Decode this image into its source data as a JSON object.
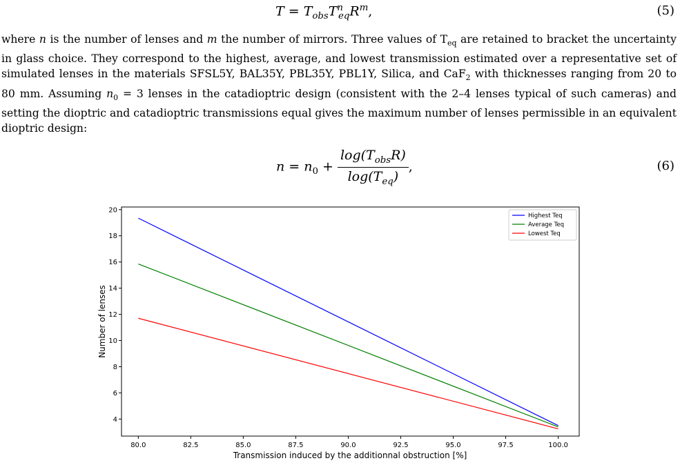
{
  "equation_5": {
    "lhs": "T",
    "rhs": "T",
    "rhs_sub1": "obs",
    "rhs_t2": "T",
    "rhs_sup2": "n",
    "rhs_sub2": "eq",
    "rhs_r": "R",
    "rhs_sup3": "m",
    "tail": ",",
    "number": "(5)"
  },
  "paragraph": {
    "t1": "where ",
    "var_n": "n",
    "t2": " is the number of lenses and ",
    "var_m": "m",
    "t3": " the number of mirrors. Three values of T",
    "sub_eq": "eq",
    "t4": " are retained to bracket the uncertainty in glass choice. They correspond to the highest, average, and lowest transmission estimated over a representative set of simulated lenses in the materials SFSL5Y, BAL35Y, PBL35Y, PBL1Y, Silica, and CaF",
    "sub_2": "2",
    "t5": " with thicknesses ranging from 20 to 80 mm. Assuming ",
    "var_n0": "n",
    "sub_0": "0",
    "t6": " = 3 lenses in the catadioptric design (consistent with the 2–4 lenses typical of such cameras) and setting the dioptric and catadioptric transmissions equal gives the maximum number of lenses permissible in an equivalent dioptric design:"
  },
  "equation_6": {
    "lhs": "n = n",
    "lhs_sub": "0",
    "plus": " + ",
    "num_a": "log(T",
    "num_sub": "obs",
    "num_b": "R)",
    "den_a": "log(T",
    "den_sub": "eq",
    "den_b": ")",
    "tail": ",",
    "number": "(6)"
  },
  "chart_data": {
    "type": "line",
    "xlabel": "Transmission induced by the additionnal obstruction [%]",
    "ylabel": "Number of lenses",
    "xlim": [
      79.2,
      101.0
    ],
    "ylim": [
      2.7,
      20.2
    ],
    "xticks": [
      "80.0",
      "82.5",
      "85.0",
      "87.5",
      "90.0",
      "92.5",
      "95.0",
      "97.5",
      "100.0"
    ],
    "xtick_values": [
      80,
      82.5,
      85,
      87.5,
      90,
      92.5,
      95,
      97.5,
      100
    ],
    "yticks": [
      "4",
      "6",
      "8",
      "10",
      "12",
      "14",
      "16",
      "18",
      "20"
    ],
    "ytick_values": [
      4,
      6,
      8,
      10,
      12,
      14,
      16,
      18,
      20
    ],
    "grid": false,
    "legend_position": "top-right",
    "series": [
      {
        "name": "Highest Teq",
        "color": "#0000ff",
        "x": [
          80,
          100
        ],
        "y": [
          19.35,
          3.5
        ]
      },
      {
        "name": "Average Teq",
        "color": "#008000",
        "x": [
          80,
          100
        ],
        "y": [
          15.85,
          3.4
        ]
      },
      {
        "name": "Lowest Teq",
        "color": "#ff0000",
        "x": [
          80,
          100
        ],
        "y": [
          11.7,
          3.25
        ]
      }
    ]
  }
}
